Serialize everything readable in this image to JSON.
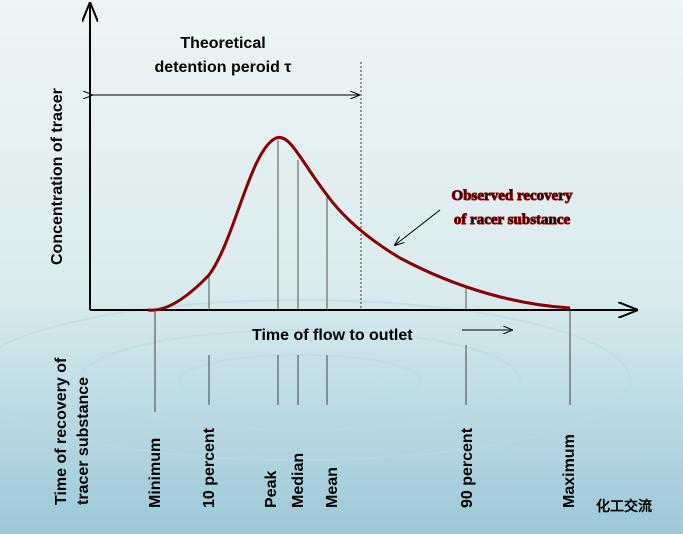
{
  "title": {
    "lines": [
      "Theoretical",
      "detention peroid τ"
    ]
  },
  "y_axis_label": "Concentration of tracer",
  "x_axis_label": "Time of flow to outlet",
  "curve_label": {
    "lines": [
      "Observed recovery",
      "of racer substance"
    ]
  },
  "recovery_label": {
    "lines": [
      "Time of recovery of",
      "tracer substance"
    ]
  },
  "markers": [
    "Minimum",
    "10 percent",
    "Peak",
    "Median",
    "Mean",
    "90 percent",
    "Maximum"
  ],
  "watermark": "化工交流"
}
